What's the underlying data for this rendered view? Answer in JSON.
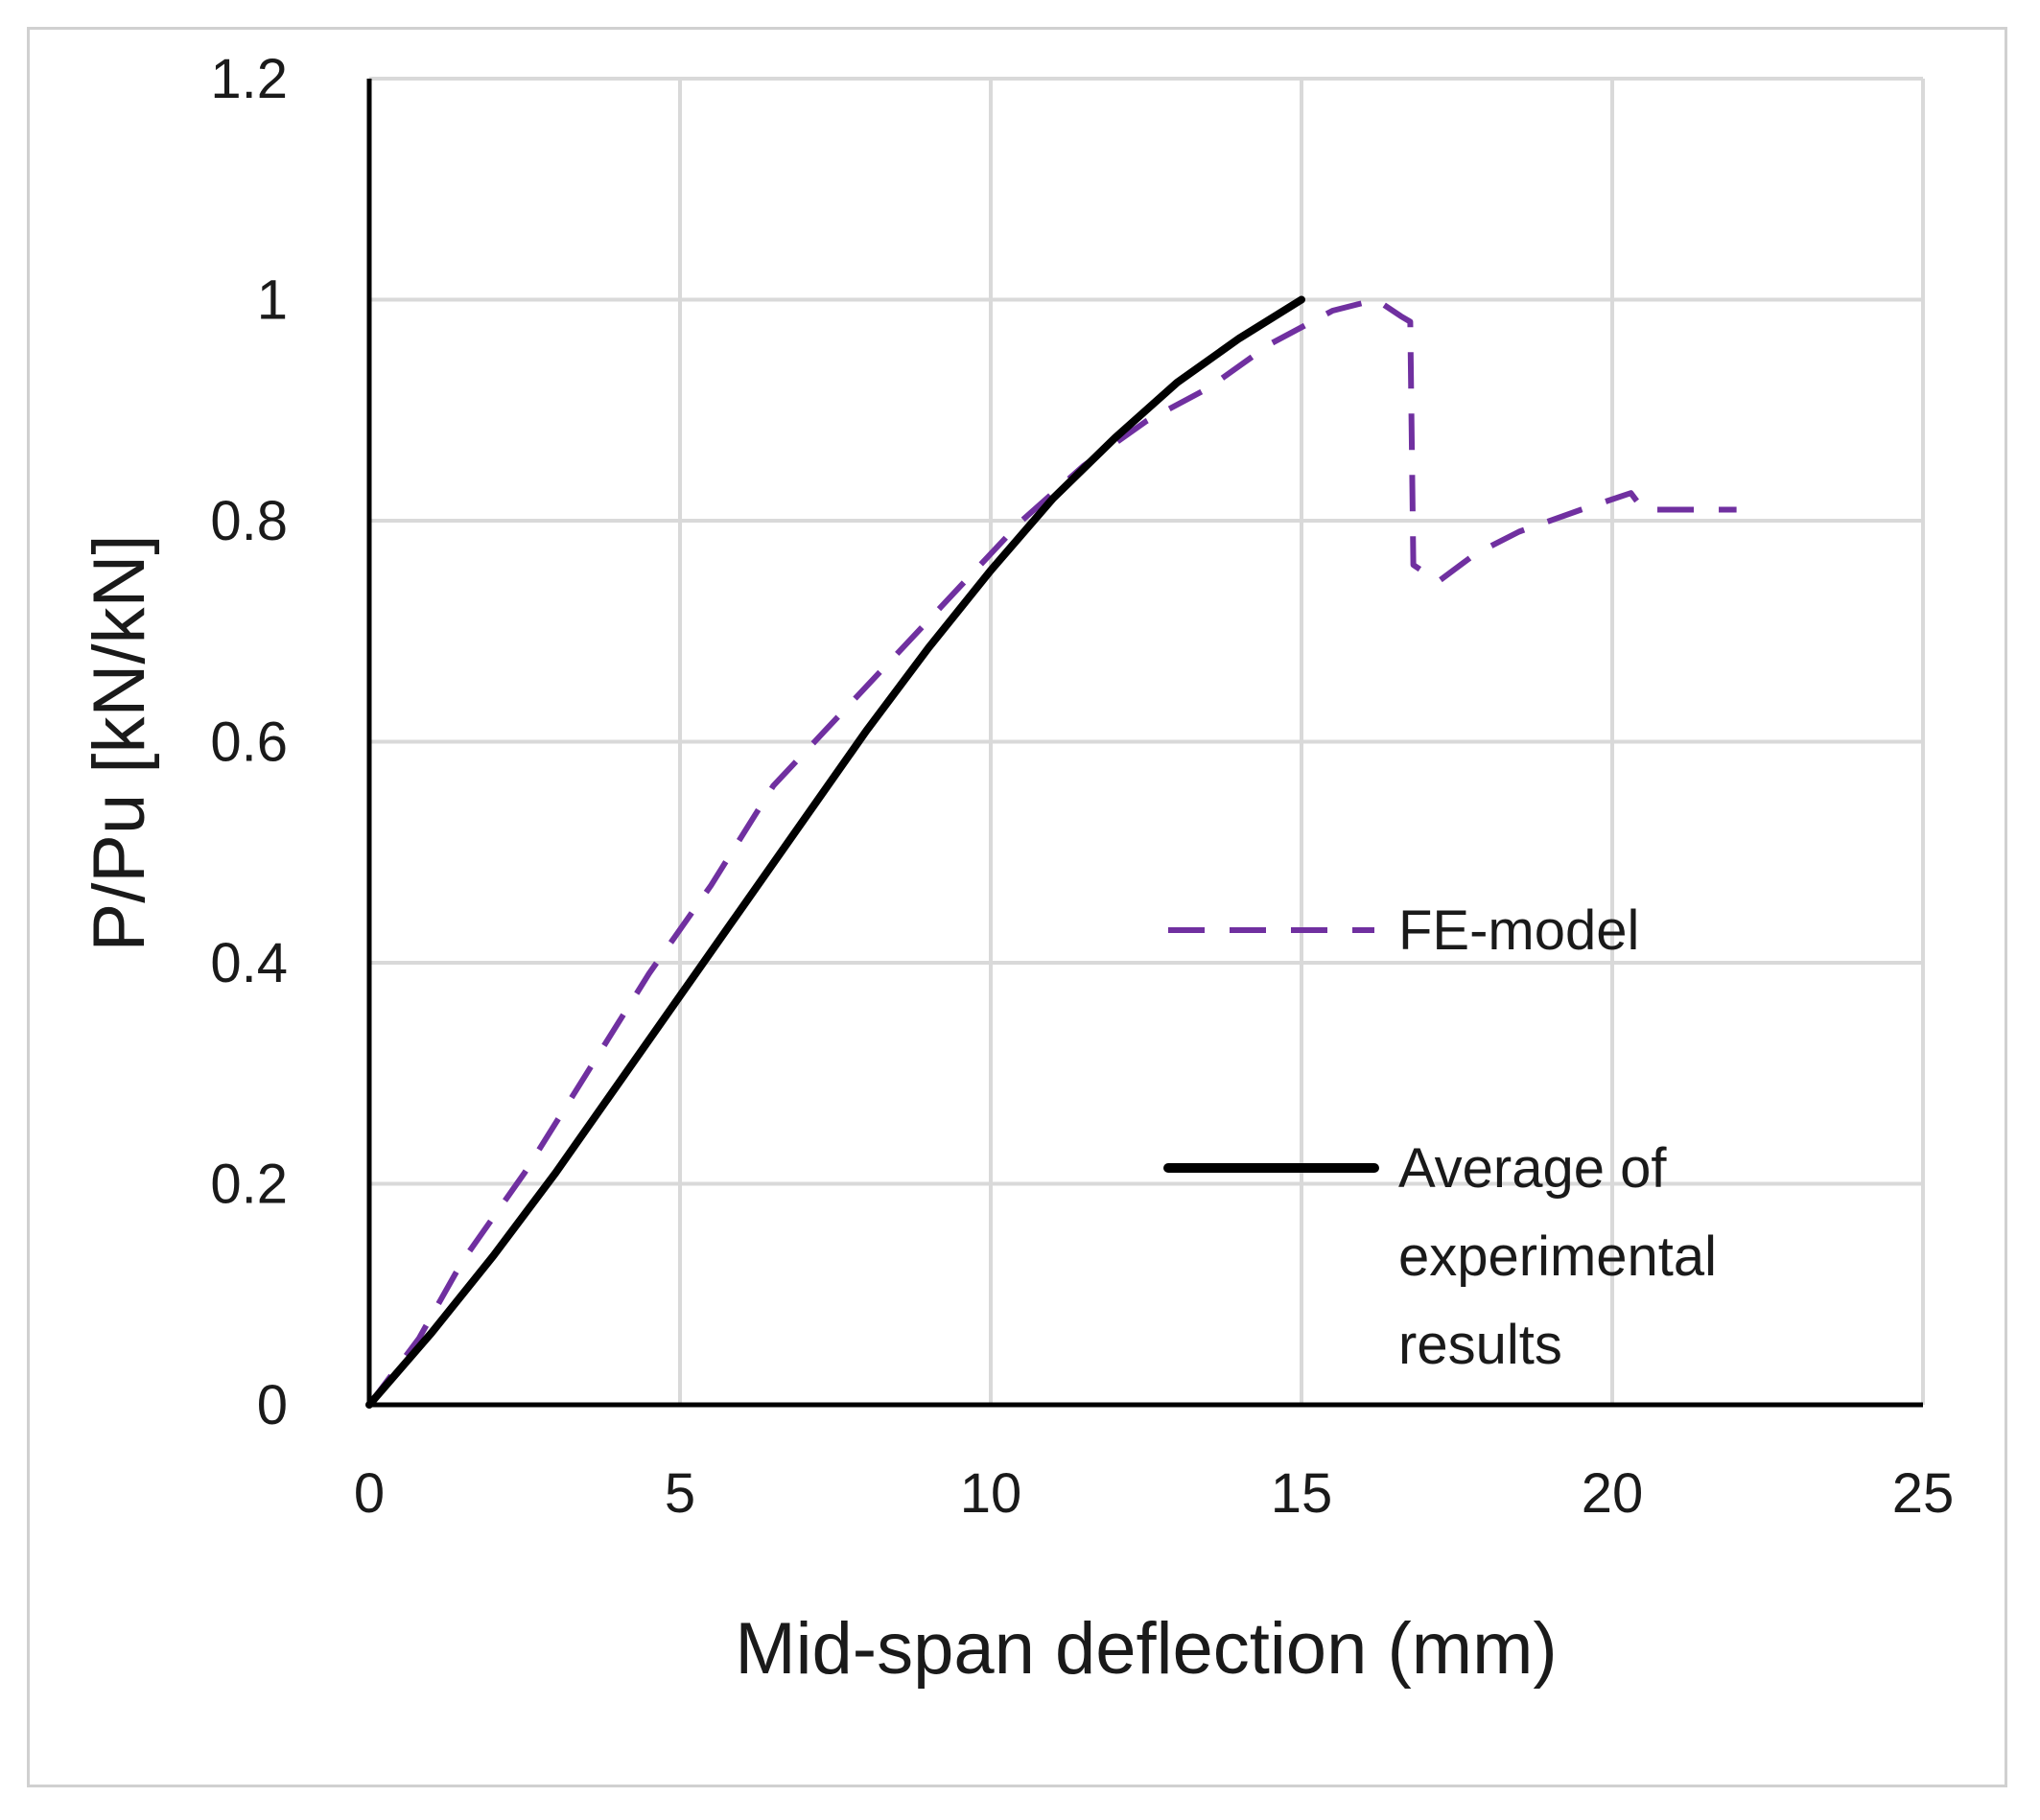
{
  "chart_data": {
    "type": "line",
    "title": "",
    "xlabel": "Mid-span deflection (mm)",
    "ylabel": "P/Pu  [kN/kN]",
    "xlim": [
      0,
      25
    ],
    "ylim": [
      0,
      1.2
    ],
    "x_ticks": [
      "0",
      "5",
      "10",
      "15",
      "20",
      "25"
    ],
    "y_ticks": [
      "0",
      "0.2",
      "0.4",
      "0.6",
      "0.8",
      "1",
      "1.2"
    ],
    "grid": true,
    "legend_position": "right",
    "series": [
      {
        "name": "FE-model",
        "style": "dashed",
        "color": "#7030a0",
        "x": [
          0,
          0.8,
          1.5,
          2.5,
          3.5,
          4.5,
          5.5,
          6.5,
          7.5,
          8.5,
          9.5,
          10.5,
          11.5,
          12.5,
          13.5,
          14.5,
          15.5,
          16.2,
          16.6,
          16.75,
          16.8,
          17.2,
          17.8,
          18.5,
          19.5,
          20.3,
          20.5,
          21,
          22
        ],
        "y": [
          0,
          0.06,
          0.13,
          0.21,
          0.3,
          0.39,
          0.47,
          0.56,
          0.62,
          0.68,
          0.74,
          0.8,
          0.85,
          0.89,
          0.92,
          0.96,
          0.99,
          1.0,
          0.985,
          0.98,
          0.76,
          0.745,
          0.77,
          0.79,
          0.81,
          0.825,
          0.81,
          0.81,
          0.81
        ]
      },
      {
        "name": "Average of experimental results",
        "style": "solid",
        "color": "#000000",
        "x": [
          0,
          1,
          2,
          3,
          4,
          5,
          6,
          7,
          8,
          9,
          10,
          11,
          12,
          13,
          14,
          15
        ],
        "y": [
          0,
          0.065,
          0.135,
          0.21,
          0.29,
          0.37,
          0.45,
          0.53,
          0.61,
          0.685,
          0.755,
          0.82,
          0.875,
          0.925,
          0.965,
          1.0
        ]
      }
    ],
    "legend_lines": [
      [
        "FE-model"
      ],
      [
        "Average of",
        "experimental",
        "results"
      ]
    ]
  }
}
